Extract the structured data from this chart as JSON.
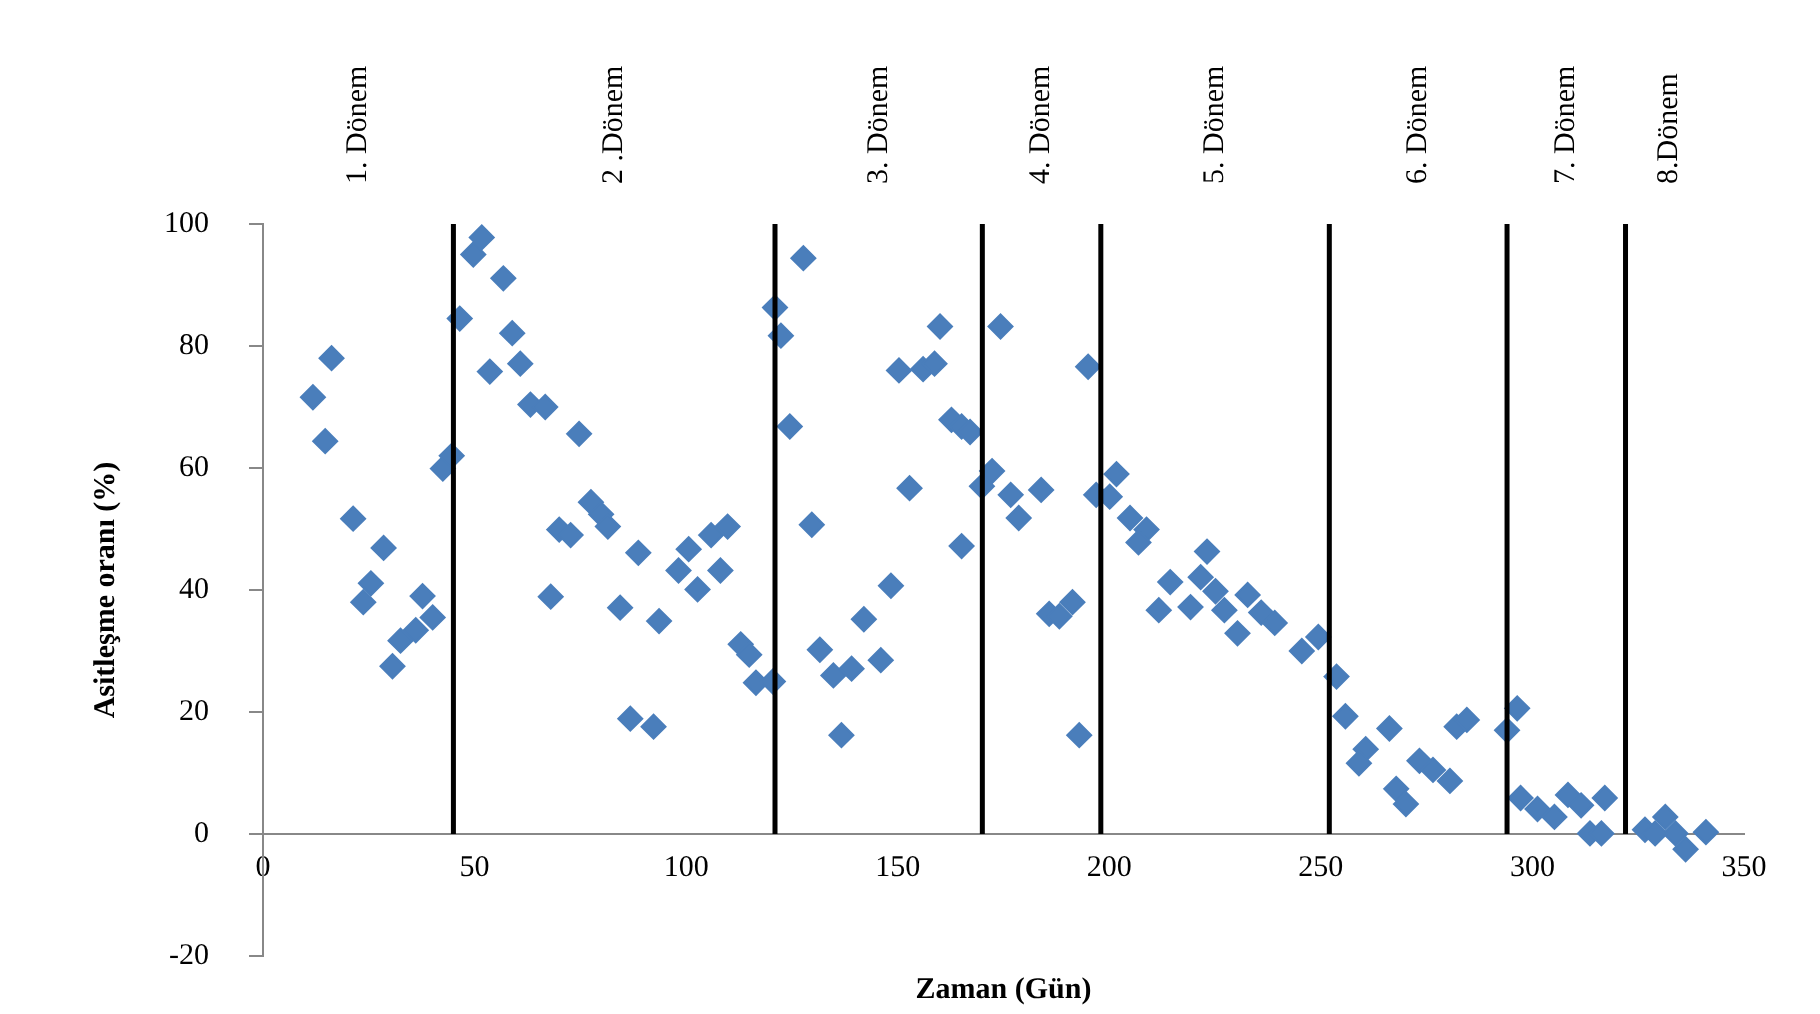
{
  "chart_data": {
    "type": "scatter",
    "xlabel": "Zaman (Gün)",
    "ylabel": "Asitleşme oranı (%)",
    "xlim": [
      0,
      350
    ],
    "xticks": [
      0,
      50,
      100,
      150,
      200,
      250,
      300,
      350
    ],
    "ylim": [
      -20,
      100
    ],
    "yticks": [
      -20,
      0,
      20,
      40,
      60,
      80,
      100
    ],
    "grid": false,
    "legend": false,
    "marker": "diamond",
    "x": [
      11.8,
      16.2,
      14.7,
      21.3,
      28.5,
      25.5,
      23.7,
      37.7,
      40.1,
      36.1,
      32.5,
      30.6,
      42.5,
      44.6,
      46.5,
      49.7,
      51.7,
      56.8,
      58.9,
      53.6,
      60.8,
      63.2,
      66.7,
      74.7,
      70,
      72.7,
      77.5,
      79.9,
      81.5,
      68,
      88.7,
      84.4,
      93.6,
      86.8,
      92.3,
      100.6,
      98.2,
      102.7,
      105.9,
      109.8,
      108.1,
      112.9,
      114.9,
      116.5,
      120.5,
      121,
      122.4,
      127.7,
      124.5,
      129.7,
      131.6,
      134.8,
      139.1,
      136.7,
      142,
      146,
      148.4,
      150.3,
      152.8,
      156,
      158.7,
      160,
      162.7,
      165.1,
      167.1,
      165.1,
      172.3,
      169.9,
      174.3,
      176.7,
      178.6,
      183.9,
      185.8,
      188.2,
      191.3,
      192.9,
      195,
      201.7,
      196.9,
      200.1,
      204.9,
      208.8,
      206.9,
      223.1,
      214.4,
      211.7,
      219.2,
      221.6,
      225.1,
      227.2,
      230.3,
      232.7,
      235.9,
      239.1,
      245.5,
      249.4,
      253.7,
      255.8,
      266.2,
      260.6,
      259,
      267.8,
      270.1,
      273.3,
      276.5,
      280.5,
      282.1,
      284.5,
      294,
      296.4,
      297.2,
      301.2,
      305.2,
      308.4,
      311.5,
      313.6,
      317.1,
      316.3,
      326.6,
      331.4,
      333.8,
      336.2,
      341,
      329
    ],
    "series": [
      {
        "color": "#4a7ebb",
        "values": [
          71.6,
          78,
          64.4,
          51.7,
          46.9,
          41.1,
          38,
          39,
          35.5,
          33.4,
          31.7,
          27.5,
          59.9,
          62,
          84.5,
          95,
          97.8,
          91.1,
          82.1,
          75.8,
          77.1,
          70.4,
          70,
          65.6,
          49.9,
          49,
          54.4,
          52.4,
          50.4,
          38.9,
          46.1,
          37.1,
          34.9,
          18.9,
          17.6,
          46.7,
          43.2,
          40.1,
          49,
          50.4,
          43.2,
          31.1,
          29.4,
          24.8,
          25,
          86.3,
          81.7,
          94.4,
          66.8,
          50.7,
          30.2,
          26,
          27.1,
          16.2,
          35.2,
          28.5,
          40.7,
          76,
          56.7,
          76.2,
          77.1,
          83.2,
          67.9,
          66.8,
          65.9,
          47.2,
          59.5,
          57,
          83.2,
          55.6,
          51.8,
          56.4,
          36.1,
          35.7,
          38,
          16.2,
          76.6,
          59,
          55.6,
          55.3,
          51.8,
          49.9,
          47.8,
          46.3,
          41.3,
          36.7,
          37.2,
          42.1,
          39.8,
          36.7,
          32.9,
          39.2,
          36.3,
          34.6,
          30,
          32.3,
          25.8,
          19.3,
          17.3,
          13.9,
          11.6,
          7.4,
          4.9,
          12,
          10.5,
          8.7,
          17.6,
          18.7,
          17,
          20.6,
          5.9,
          4.1,
          2.8,
          6.4,
          4.7,
          0.1,
          5.9,
          0.1,
          0.7,
          2.8,
          0.1,
          -2.5,
          0.3,
          0.1
        ]
      }
    ],
    "ref_lines": [
      {
        "axis": "x",
        "value": 45,
        "color": "#000000"
      },
      {
        "axis": "x",
        "value": 121,
        "color": "#000000"
      },
      {
        "axis": "x",
        "value": 170,
        "color": "#000000"
      },
      {
        "axis": "x",
        "value": 198,
        "color": "#000000"
      },
      {
        "axis": "x",
        "value": 252,
        "color": "#000000"
      },
      {
        "axis": "x",
        "value": 294,
        "color": "#000000"
      },
      {
        "axis": "x",
        "value": 322,
        "color": "#000000"
      }
    ],
    "annotations": [
      "1. Dönem",
      "2 .Dönem",
      "3. Dönem",
      "4. Dönem",
      "5. Dönem",
      "6. Dönem",
      "7. Dönem",
      "8.Dönem"
    ]
  }
}
